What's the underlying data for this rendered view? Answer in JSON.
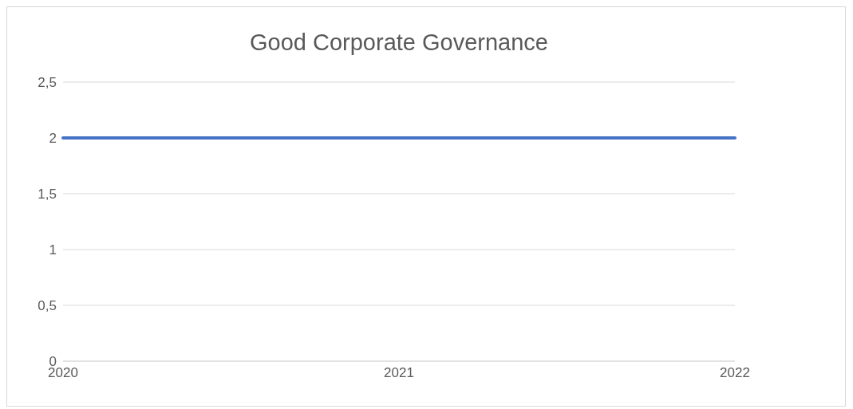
{
  "chart_data": {
    "type": "line",
    "title": "Good Corporate Governance",
    "categories": [
      "2020",
      "2021",
      "2022"
    ],
    "series": [
      {
        "color": "#4472c4",
        "values": [
          2,
          2,
          2
        ]
      }
    ],
    "ylim": [
      0,
      2.5
    ],
    "yticks": [
      0,
      {
        "value": 0.5,
        "label": "0,5"
      },
      1,
      {
        "value": 1.5,
        "label": "1,5"
      },
      2,
      {
        "value": 2.5,
        "label": "2,5"
      }
    ],
    "grid": "y",
    "marker": "none",
    "line_style": "solid"
  }
}
